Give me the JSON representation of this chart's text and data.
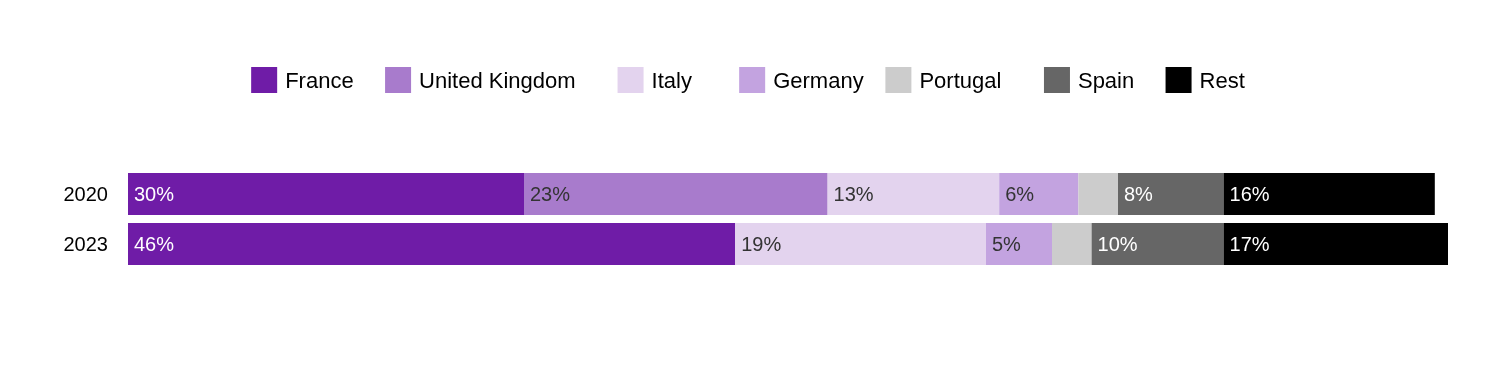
{
  "chart_data": {
    "type": "bar",
    "orientation": "horizontal",
    "stacked": true,
    "categories": [
      "2020",
      "2023"
    ],
    "xlim": [
      0,
      100
    ],
    "tick_labels": "y",
    "legend": "top",
    "series": [
      {
        "name": "France",
        "color": "#6f1ca7",
        "values": [
          30,
          46
        ],
        "value_labels": [
          "30%",
          "46%"
        ]
      },
      {
        "name": "United Kingdom",
        "color": "#a87bcc",
        "values": [
          23,
          null
        ],
        "value_labels": [
          "23%",
          null
        ]
      },
      {
        "name": "Italy",
        "color": "#e3d3ee",
        "values": [
          13,
          19
        ],
        "value_labels": [
          "13%",
          "19%"
        ]
      },
      {
        "name": "Germany",
        "color": "#c3a3e0",
        "values": [
          6,
          5
        ],
        "value_labels": [
          "6%",
          "5%"
        ]
      },
      {
        "name": "Portugal",
        "color": "#cccccc",
        "values": [
          3,
          3
        ],
        "value_labels": [
          null,
          null
        ]
      },
      {
        "name": "Spain",
        "color": "#666666",
        "values": [
          8,
          10
        ],
        "value_labels": [
          "8%",
          "10%"
        ]
      },
      {
        "name": "Rest",
        "color": "#000000",
        "values": [
          16,
          17
        ],
        "value_labels": [
          "16%",
          "17%"
        ]
      }
    ]
  }
}
